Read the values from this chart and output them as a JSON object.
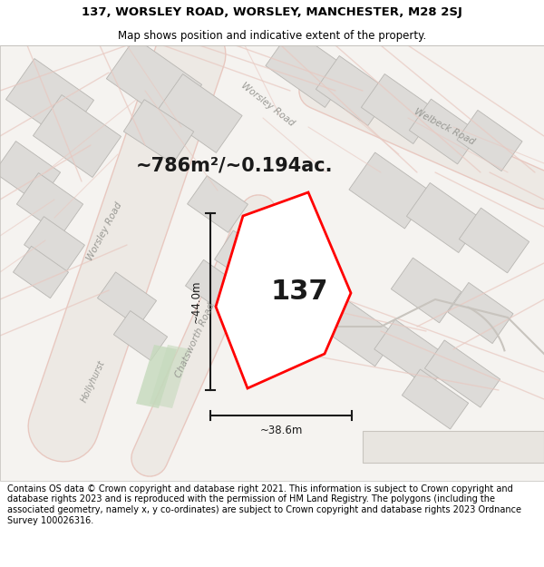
{
  "title_line1": "137, WORSLEY ROAD, WORSLEY, MANCHESTER, M28 2SJ",
  "title_line2": "Map shows position and indicative extent of the property.",
  "area_label": "~786m²/~0.194ac.",
  "property_number": "137",
  "dim_height": "~44.0m",
  "dim_width": "~38.6m",
  "footer_text": "Contains OS data © Crown copyright and database right 2021. This information is subject to Crown copyright and database rights 2023 and is reproduced with the permission of HM Land Registry. The polygons (including the associated geometry, namely x, y co-ordinates) are subject to Crown copyright and database rights 2023 Ordnance Survey 100026316.",
  "map_bg_color": "#f5f3f0",
  "road_outline_color": "#e8c8c0",
  "road_fill_color": "#ffffff",
  "building_face_color": "#dddbd8",
  "building_edge_color": "#b8b6b2",
  "property_fill": "#ffffff",
  "property_edge": "#ff0000",
  "green_color": "#c5d9bc",
  "dim_line_color": "#1a1a1a",
  "text_color": "#333333",
  "road_label_color": "#999994",
  "white": "#ffffff",
  "title_fontsize": 9.5,
  "subtitle_fontsize": 8.5,
  "area_fontsize": 15,
  "number_fontsize": 22,
  "dim_fontsize": 8.5,
  "road_label_fontsize": 7.5,
  "footer_fontsize": 7.0
}
